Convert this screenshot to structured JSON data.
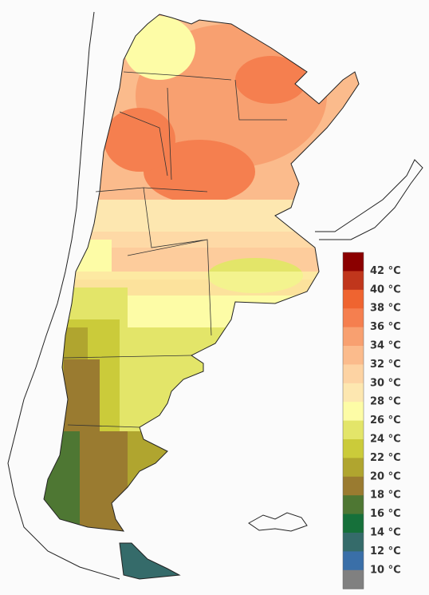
{
  "legend": {
    "swatches": [
      "#8b0000",
      "#c0361c",
      "#ef6430",
      "#f57f4f",
      "#f8a070",
      "#fbbb8c",
      "#fdd3a3",
      "#fde7b0",
      "#fdfca6",
      "#e3e569",
      "#cbcb3a",
      "#b0a52f",
      "#9a7b30",
      "#4e7733",
      "#16703a",
      "#356b6a",
      "#3a6fa8",
      "#808080"
    ],
    "labels": [
      "42 °C",
      "40 °C",
      "38 °C",
      "36 °C",
      "34 °C",
      "32 °C",
      "30 °C",
      "28 °C",
      "26 °C",
      "24 °C",
      "22 °C",
      "20 °C",
      "18 °C",
      "16 °C",
      "14 °C",
      "12 °C",
      "10 °C"
    ]
  }
}
